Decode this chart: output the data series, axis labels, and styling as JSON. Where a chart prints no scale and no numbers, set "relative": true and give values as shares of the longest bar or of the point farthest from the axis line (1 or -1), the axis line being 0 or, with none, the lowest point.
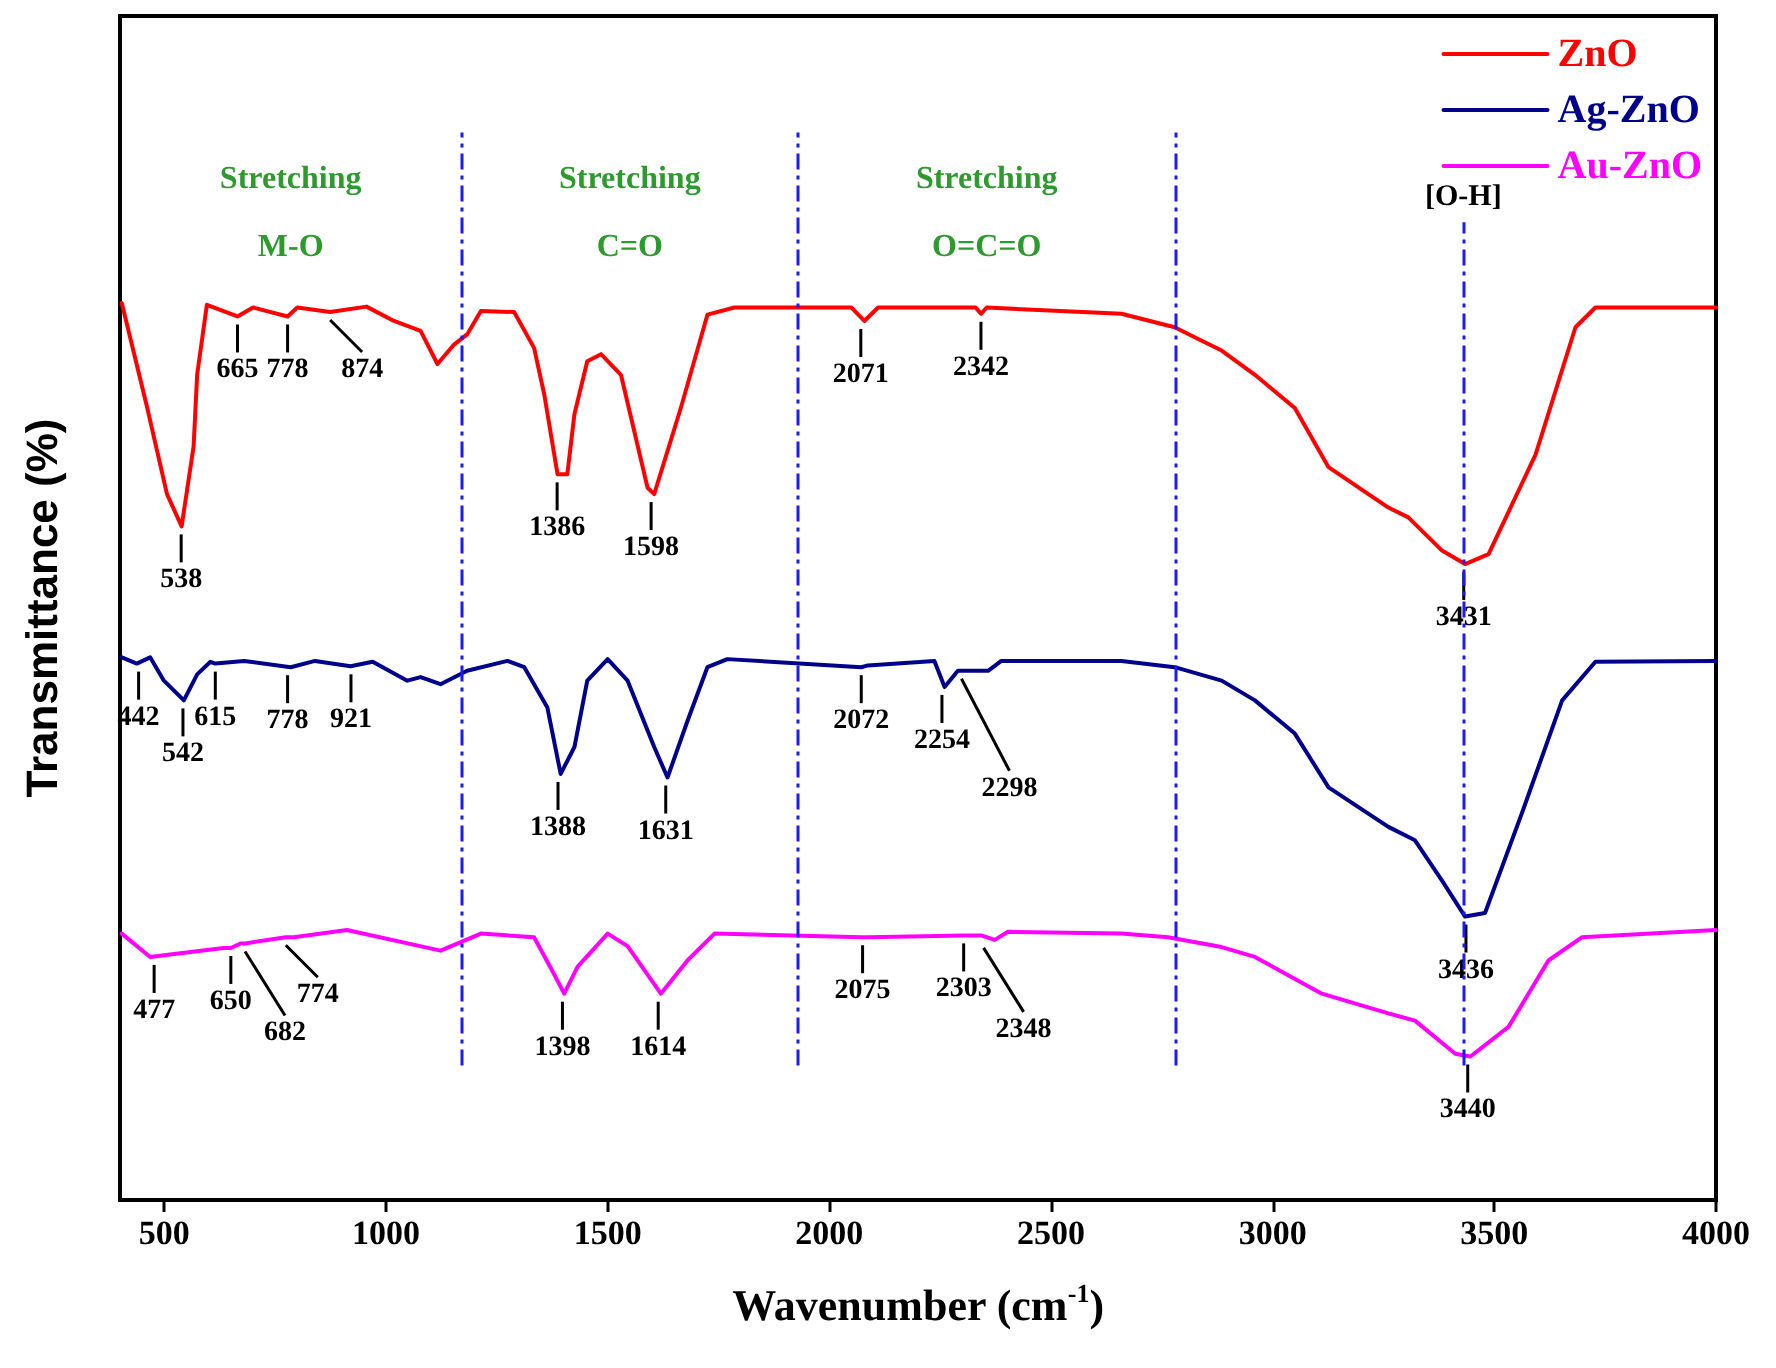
{
  "chart_data": {
    "type": "line",
    "relative": true,
    "xlabel": "Wavenumber (cm$^{-1}$)",
    "ylabel": "Transmittance (%)",
    "xlim": [
      400,
      4000
    ],
    "xticks": [
      500,
      1000,
      1500,
      2000,
      2500,
      3000,
      3500,
      4000
    ],
    "grid": false,
    "legend": "top right",
    "marker": "none",
    "line_style": "solid",
    "series": [
      {
        "name": "ZnO",
        "color": "#ff0000",
        "x": [
          404,
          461,
          506,
          539,
          566,
          574,
          596,
          665,
          700,
          778,
          800,
          874,
          956,
          1018,
          1078,
          1116,
          1154,
          1183,
          1214,
          1289,
          1334,
          1357,
          1387,
          1409,
          1425,
          1454,
          1485,
          1530,
          1590,
          1605,
          1665,
          1725,
          1786,
          2050,
          2079,
          2110,
          2330,
          2342,
          2355,
          2659,
          2779,
          2840,
          2885,
          2960,
          3050,
          3126,
          3261,
          3306,
          3382,
          3434,
          3487,
          3593,
          3683,
          3728,
          4000
        ],
        "values": [
          1.0,
          0.884,
          0.787,
          0.751,
          0.84,
          0.92,
          0.998,
          0.985,
          0.995,
          0.985,
          0.995,
          0.99,
          0.996,
          0.98,
          0.969,
          0.932,
          0.954,
          0.965,
          0.991,
          0.99,
          0.95,
          0.898,
          0.809,
          0.809,
          0.876,
          0.935,
          0.943,
          0.92,
          0.794,
          0.787,
          0.883,
          0.987,
          0.995,
          0.995,
          0.98,
          0.995,
          0.995,
          0.988,
          0.995,
          0.988,
          0.973,
          0.958,
          0.947,
          0.92,
          0.883,
          0.817,
          0.772,
          0.761,
          0.724,
          0.709,
          0.72,
          0.831,
          0.973,
          0.995,
          0.995
        ]
      },
      {
        "name": "Ag-ZnO",
        "color": "#00008b",
        "x": [
          404,
          438,
          468,
          499,
          544,
          574,
          604,
          615,
          680,
          785,
          840,
          920,
          970,
          1048,
          1078,
          1123,
          1183,
          1274,
          1312,
          1364,
          1394,
          1425,
          1454,
          1500,
          1545,
          1605,
          1635,
          1680,
          1725,
          1770,
          2072,
          2087,
          2237,
          2260,
          2290,
          2298,
          2358,
          2388,
          2659,
          2779,
          2885,
          2960,
          3050,
          3126,
          3261,
          3321,
          3382,
          3434,
          3479,
          3562,
          3653,
          3728,
          4000
        ],
        "values": [
          0.605,
          0.598,
          0.605,
          0.579,
          0.557,
          0.586,
          0.6,
          0.598,
          0.601,
          0.594,
          0.601,
          0.595,
          0.6,
          0.579,
          0.583,
          0.575,
          0.59,
          0.601,
          0.594,
          0.549,
          0.475,
          0.505,
          0.579,
          0.603,
          0.579,
          0.505,
          0.471,
          0.534,
          0.594,
          0.603,
          0.594,
          0.596,
          0.601,
          0.572,
          0.59,
          0.59,
          0.59,
          0.601,
          0.601,
          0.594,
          0.579,
          0.557,
          0.52,
          0.46,
          0.416,
          0.401,
          0.356,
          0.316,
          0.32,
          0.431,
          0.557,
          0.6,
          0.601
        ]
      },
      {
        "name": "Au-ZnO",
        "color": "#ff00ff",
        "x": [
          404,
          468,
          536,
          634,
          650,
          672,
          682,
          774,
          792,
          912,
          1123,
          1214,
          1334,
          1379,
          1402,
          1432,
          1500,
          1545,
          1620,
          1680,
          1741,
          2075,
          2087,
          2303,
          2343,
          2373,
          2403,
          2659,
          2764,
          2885,
          2960,
          3111,
          3261,
          3321,
          3412,
          3446,
          3532,
          3622,
          3698,
          4000
        ],
        "values": [
          0.297,
          0.271,
          0.275,
          0.281,
          0.281,
          0.286,
          0.286,
          0.293,
          0.293,
          0.301,
          0.278,
          0.297,
          0.293,
          0.252,
          0.23,
          0.26,
          0.297,
          0.283,
          0.23,
          0.267,
          0.297,
          0.293,
          0.293,
          0.295,
          0.295,
          0.29,
          0.299,
          0.297,
          0.293,
          0.282,
          0.271,
          0.23,
          0.208,
          0.2,
          0.163,
          0.16,
          0.193,
          0.267,
          0.293,
          0.301
        ]
      }
    ],
    "ref_lines": [
      {
        "axis": "x",
        "value": 1170,
        "color": "#1a1aff",
        "line_style": "dashed"
      },
      {
        "axis": "x",
        "value": 1930,
        "color": "#1a1aff",
        "line_style": "dashed"
      },
      {
        "axis": "x",
        "value": 2780,
        "color": "#1a1aff",
        "line_style": "dashed"
      },
      {
        "axis": "x",
        "value": 3430,
        "color": "#1a1aff",
        "line_style": "dashed",
        "label": "[O-H]"
      }
    ],
    "annotations": [
      "Stretching\nM-O",
      "Stretching\nC=O",
      "Stretching\nO=C=O",
      {
        "text": "538",
        "x": 538,
        "y": 0.751
      },
      {
        "text": "665",
        "x": 665,
        "y": 0.985
      },
      {
        "text": "778",
        "x": 778,
        "y": 0.985
      },
      {
        "text": "874",
        "x": 874,
        "y": 0.99
      },
      {
        "text": "1386",
        "x": 1386,
        "y": 0.809
      },
      {
        "text": "1598",
        "x": 1598,
        "y": 0.787
      },
      {
        "text": "2071",
        "x": 2071,
        "y": 0.98
      },
      {
        "text": "2342",
        "x": 2342,
        "y": 0.988
      },
      {
        "text": "3431",
        "x": 3431,
        "y": 0.709
      },
      {
        "text": "442",
        "x": 442,
        "y": 0.598
      },
      {
        "text": "542",
        "x": 542,
        "y": 0.557
      },
      {
        "text": "615",
        "x": 615,
        "y": 0.598
      },
      {
        "text": "778",
        "x": 778,
        "y": 0.594
      },
      {
        "text": "921",
        "x": 921,
        "y": 0.595
      },
      {
        "text": "1388",
        "x": 1388,
        "y": 0.475
      },
      {
        "text": "1631",
        "x": 1631,
        "y": 0.471
      },
      {
        "text": "2072",
        "x": 2072,
        "y": 0.594
      },
      {
        "text": "2254",
        "x": 2254,
        "y": 0.572
      },
      {
        "text": "2298",
        "x": 2298,
        "y": 0.59
      },
      {
        "text": "3436",
        "x": 3436,
        "y": 0.316
      },
      {
        "text": "477",
        "x": 477,
        "y": 0.271
      },
      {
        "text": "650",
        "x": 650,
        "y": 0.281
      },
      {
        "text": "682",
        "x": 682,
        "y": 0.286
      },
      {
        "text": "774",
        "x": 774,
        "y": 0.293
      },
      {
        "text": "1398",
        "x": 1398,
        "y": 0.23
      },
      {
        "text": "1614",
        "x": 1614,
        "y": 0.23
      },
      {
        "text": "2075",
        "x": 2075,
        "y": 0.293
      },
      {
        "text": "2303",
        "x": 2303,
        "y": 0.295
      },
      {
        "text": "2348",
        "x": 2348,
        "y": 0.29
      },
      {
        "text": "3440",
        "x": 3440,
        "y": 0.16
      }
    ]
  }
}
